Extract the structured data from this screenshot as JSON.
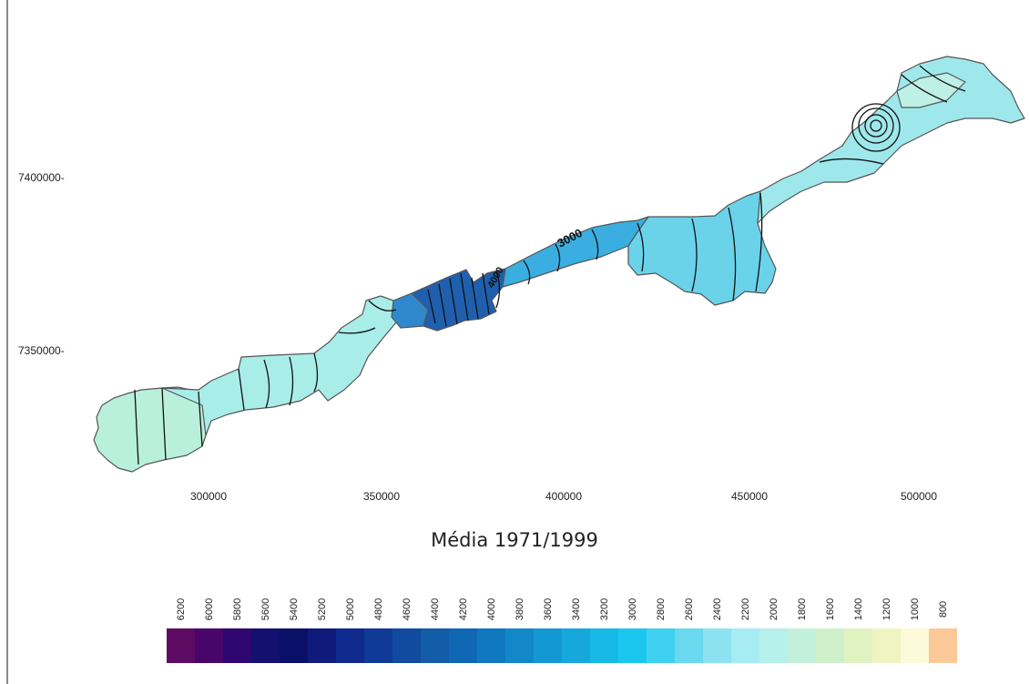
{
  "map": {
    "title": "Média 1971/1999",
    "y_ticks": [
      "7400000-",
      "7350000-"
    ],
    "x_ticks": [
      "300000",
      "350000",
      "400000",
      "450000",
      "500000"
    ],
    "contour_labels": [
      "3000",
      "4000"
    ]
  },
  "legend": {
    "labels": [
      "6200",
      "6000",
      "5800",
      "5600",
      "5400",
      "5200",
      "5000",
      "4800",
      "4600",
      "4400",
      "4200",
      "4000",
      "3800",
      "3600",
      "3400",
      "3200",
      "3000",
      "2800",
      "2600",
      "2400",
      "2200",
      "2000",
      "1800",
      "1600",
      "1400",
      "1200",
      "1000",
      "800"
    ],
    "colors": [
      "#5c0a62",
      "#48066b",
      "#2e0870",
      "#14106f",
      "#0a1068",
      "#0f1a7a",
      "#0f2a8c",
      "#0f3a96",
      "#104ba0",
      "#125ca8",
      "#1068b4",
      "#1078be",
      "#1288c8",
      "#1498d3",
      "#16a8dc",
      "#18b8e6",
      "#1cc7ef",
      "#40d0ef",
      "#6ad8ef",
      "#8de2f0",
      "#a6ecf2",
      "#b5f0ea",
      "#c2f0da",
      "#d0f0cc",
      "#e0f2c2",
      "#f0f4c0",
      "#fcfad8",
      "#fbc898"
    ]
  }
}
